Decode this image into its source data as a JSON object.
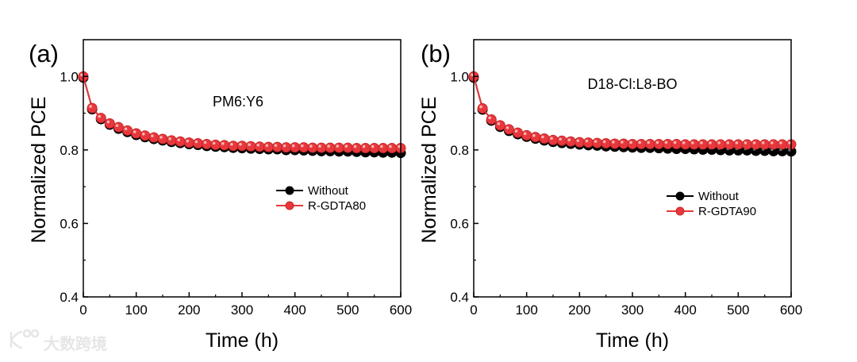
{
  "colors": {
    "without": "#000000",
    "treated": "#e8383d",
    "treated_edge": "#c62828",
    "watermark": "#e6e6e6"
  },
  "watermark": {
    "text": "大数跨境"
  },
  "chart_data": [
    {
      "type": "line",
      "panel_label": "(a)",
      "annotation": "PM6:Y6",
      "xlabel": "Time (h)",
      "ylabel": "Normalized PCE",
      "xlim": [
        0,
        600
      ],
      "ylim": [
        0.4,
        1.1
      ],
      "xticks": [
        0,
        100,
        200,
        300,
        400,
        500,
        600
      ],
      "yticks": [
        0.4,
        0.6,
        0.8,
        1.0
      ],
      "xtick_labels": [
        "0",
        "100",
        "200",
        "300",
        "400",
        "500",
        "600"
      ],
      "ytick_labels": [
        "0.4",
        "0.6",
        "0.8",
        "1.0"
      ],
      "grid": false,
      "legend_position": "center-right",
      "x_step": 16.667,
      "series": [
        {
          "name": "Without",
          "values": [
            1.0,
            0.914,
            0.887,
            0.872,
            0.861,
            0.852,
            0.844,
            0.838,
            0.833,
            0.829,
            0.825,
            0.822,
            0.819,
            0.817,
            0.814,
            0.812,
            0.811,
            0.809,
            0.808,
            0.807,
            0.806,
            0.805,
            0.805,
            0.803,
            0.803,
            0.802,
            0.801,
            0.8,
            0.8,
            0.799,
            0.799,
            0.798,
            0.797,
            0.797,
            0.796,
            0.796,
            0.795
          ]
        },
        {
          "name": "R-GDTA80",
          "values": [
            1.0,
            0.914,
            0.887,
            0.872,
            0.862,
            0.853,
            0.845,
            0.839,
            0.834,
            0.83,
            0.826,
            0.823,
            0.82,
            0.818,
            0.816,
            0.814,
            0.813,
            0.811,
            0.811,
            0.81,
            0.809,
            0.808,
            0.808,
            0.807,
            0.807,
            0.807,
            0.806,
            0.806,
            0.806,
            0.806,
            0.806,
            0.805,
            0.805,
            0.805,
            0.805,
            0.805,
            0.805
          ]
        }
      ]
    },
    {
      "type": "line",
      "panel_label": "(b)",
      "annotation": "D18-Cl:L8-BO",
      "xlabel": "Time (h)",
      "ylabel": "Normalized PCE",
      "xlim": [
        0,
        600
      ],
      "ylim": [
        0.4,
        1.1
      ],
      "xticks": [
        0,
        100,
        200,
        300,
        400,
        500,
        600
      ],
      "yticks": [
        0.4,
        0.6,
        0.8,
        1.0
      ],
      "xtick_labels": [
        "0",
        "100",
        "200",
        "300",
        "400",
        "500",
        "600"
      ],
      "ytick_labels": [
        "0.4",
        "0.6",
        "0.8",
        "1.0"
      ],
      "grid": false,
      "legend_position": "center-right",
      "x_step": 16.667,
      "series": [
        {
          "name": "Without",
          "values": [
            1.0,
            0.913,
            0.883,
            0.866,
            0.855,
            0.846,
            0.839,
            0.834,
            0.829,
            0.825,
            0.822,
            0.82,
            0.818,
            0.816,
            0.815,
            0.813,
            0.812,
            0.811,
            0.81,
            0.809,
            0.809,
            0.808,
            0.807,
            0.806,
            0.806,
            0.805,
            0.804,
            0.804,
            0.803,
            0.802,
            0.802,
            0.802,
            0.801,
            0.801,
            0.8,
            0.8,
            0.799
          ]
        },
        {
          "name": "R-GDTA90",
          "values": [
            1.0,
            0.913,
            0.883,
            0.867,
            0.856,
            0.847,
            0.84,
            0.835,
            0.831,
            0.827,
            0.825,
            0.823,
            0.821,
            0.82,
            0.819,
            0.818,
            0.817,
            0.817,
            0.816,
            0.816,
            0.816,
            0.816,
            0.816,
            0.816,
            0.815,
            0.815,
            0.815,
            0.815,
            0.815,
            0.815,
            0.815,
            0.815,
            0.815,
            0.815,
            0.815,
            0.815,
            0.815
          ]
        }
      ]
    }
  ]
}
